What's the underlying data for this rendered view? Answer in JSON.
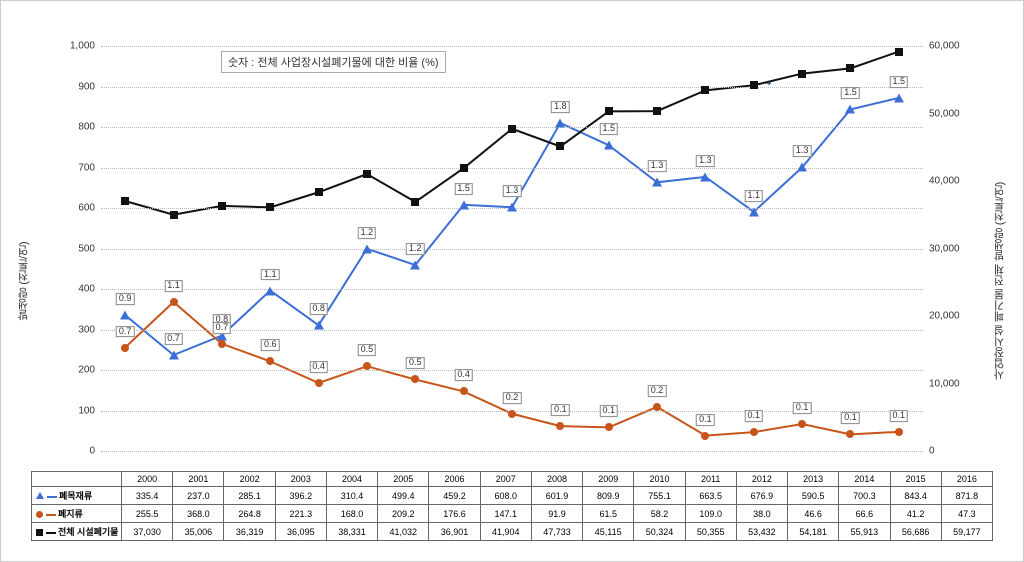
{
  "note_text": "숫자 : 전체 사업장시설폐기물에 대한 비율 (%)",
  "y_left_label": "발생량 (천톤/연)",
  "y_right_label": "사업장시설 폐기물 전체 발생량 (천톤/연)",
  "y_left": {
    "min": 0,
    "max": 1000,
    "step": 100
  },
  "y_right": {
    "min": 0,
    "max": 60000,
    "step": 10000
  },
  "categories": [
    "2000",
    "2001",
    "2002",
    "2003",
    "2004",
    "2005",
    "2006",
    "2007",
    "2008",
    "2009",
    "2010",
    "2011",
    "2012",
    "2013",
    "2014",
    "2015",
    "2016"
  ],
  "series": [
    {
      "name": "폐목재류",
      "color": "#3b6fd6",
      "marker": "triangle",
      "axis": "left",
      "values": [
        335.4,
        237.0,
        285.1,
        396.2,
        310.4,
        499.4,
        459.2,
        608.0,
        601.9,
        809.9,
        755.1,
        663.5,
        676.9,
        590.5,
        700.3,
        843.4,
        871.8
      ],
      "labels": [
        "0.9",
        "0.7",
        "0.8",
        "1.1",
        "0.8",
        "1.2",
        "1.2",
        "1.5",
        "1.3",
        "1.8",
        "1.5",
        "1.3",
        "1.3",
        "1.1",
        "1.3",
        "1.5",
        "1.5"
      ]
    },
    {
      "name": "폐지류",
      "color": "#c7551b",
      "marker": "circle",
      "axis": "left",
      "values": [
        255.5,
        368.0,
        264.8,
        221.3,
        168.0,
        209.2,
        176.6,
        147.1,
        91.9,
        61.5,
        58.2,
        109.0,
        38.0,
        46.6,
        66.6,
        41.2,
        47.3
      ],
      "labels": [
        "0.7",
        "1.1",
        "0.7",
        "0.6",
        "0.4",
        "0.5",
        "0.5",
        "0.4",
        "0.2",
        "0.1",
        "0.1",
        "0.2",
        "0.1",
        "0.1",
        "0.1",
        "0.1",
        "0.1"
      ]
    },
    {
      "name": "전체 시설폐기물",
      "color": "#111111",
      "marker": "square",
      "axis": "right",
      "values": [
        37030,
        35006,
        36319,
        36095,
        38331,
        41032,
        36901,
        41904,
        47733,
        45115,
        50324,
        50355,
        53432,
        54181,
        55913,
        56686,
        59177
      ],
      "labels": null
    }
  ],
  "arrow_annotation": {
    "x_index": 13.5,
    "y_value_right": 54500
  },
  "grid_color": "#bbbbbb",
  "label_box_border": "#888888",
  "background": "#ffffff"
}
